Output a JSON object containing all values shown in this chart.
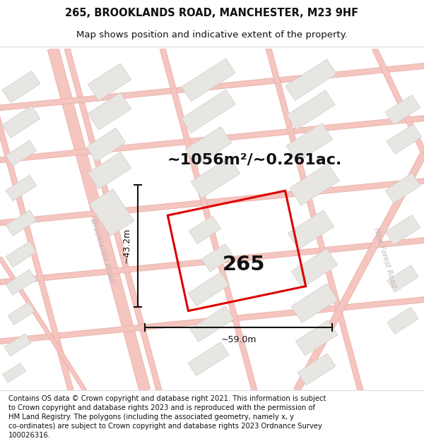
{
  "title_line1": "265, BROOKLANDS ROAD, MANCHESTER, M23 9HF",
  "title_line2": "Map shows position and indicative extent of the property.",
  "area_text": "~1056m²/~0.261ac.",
  "property_number": "265",
  "dim_width": "~59.0m",
  "dim_height": "~43.2m",
  "road_label_main": "Brooklands Road",
  "road_label_right": "New Forest Road",
  "footer_lines": [
    "Contains OS data © Crown copyright and database right 2021. This information is subject",
    "to Crown copyright and database rights 2023 and is reproduced with the permission of",
    "HM Land Registry. The polygons (including the associated geometry, namely x, y",
    "co-ordinates) are subject to Crown copyright and database rights 2023 Ordnance Survey",
    "100026316."
  ],
  "map_bg": "#ffffff",
  "road_color": "#f5c5c0",
  "road_stroke": "#e8a8a0",
  "building_fill": "#e8e6e3",
  "building_stroke": "#d0ccc8",
  "property_stroke": "#dd0000",
  "dim_color": "#111111",
  "text_color": "#111111",
  "road_text_color": "#c0b8b5",
  "title_fontsize": 10.5,
  "subtitle_fontsize": 9.5,
  "area_fontsize": 17,
  "number_fontsize": 20,
  "footer_fontsize": 7.2
}
